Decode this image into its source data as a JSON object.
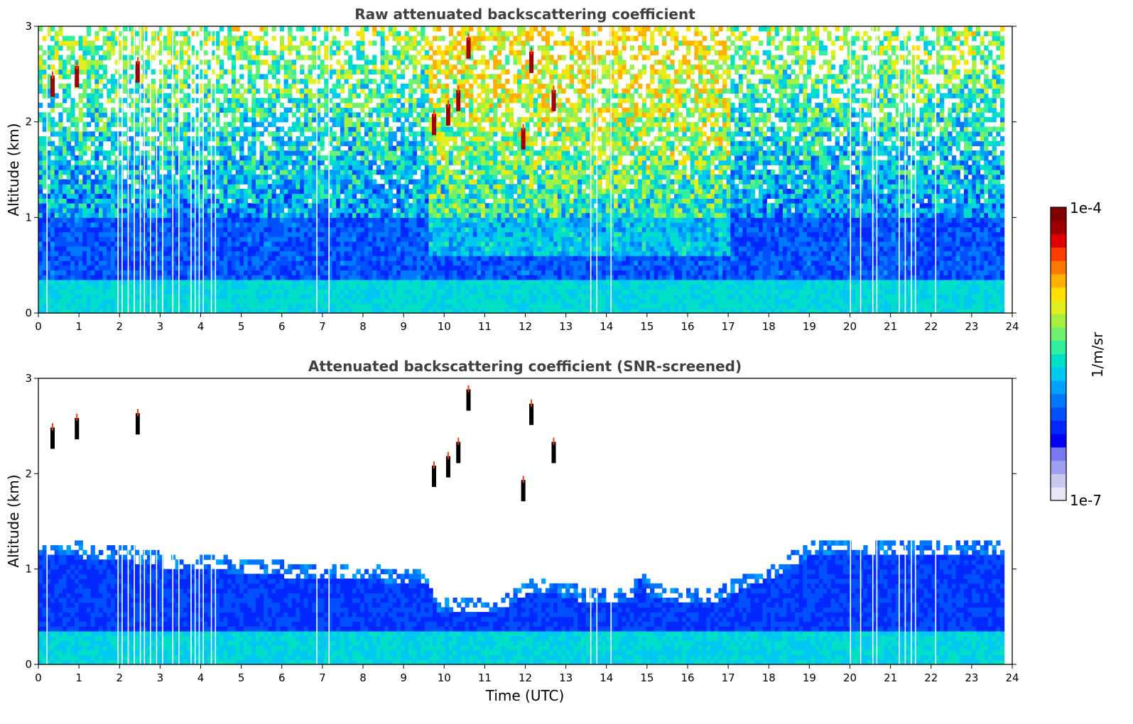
{
  "chart_data": [
    {
      "type": "heatmap",
      "title": "Raw attenuated backscattering coefficient",
      "xlabel": "",
      "ylabel": "Altitude (km)",
      "xlim": [
        0,
        24
      ],
      "ylim": [
        0,
        3
      ],
      "xticks": [
        "0",
        "1",
        "2",
        "3",
        "4",
        "5",
        "6",
        "7",
        "8",
        "9",
        "10",
        "11",
        "12",
        "13",
        "14",
        "15",
        "16",
        "17",
        "18",
        "19",
        "20",
        "21",
        "22",
        "23",
        "24"
      ],
      "yticks": [
        "0",
        "1",
        "2",
        "3"
      ],
      "data_end_hour": 23.8,
      "description_levels": {
        "surface_layer_top_km": 0.35,
        "dense_blue_top_km": 1.0,
        "cloud_patches": [
          {
            "t": 0.35,
            "z": 2.35
          },
          {
            "t": 0.95,
            "z": 2.45
          },
          {
            "t": 2.45,
            "z": 2.5
          },
          {
            "t": 9.75,
            "z": 1.95
          },
          {
            "t": 10.1,
            "z": 2.05
          },
          {
            "t": 10.35,
            "z": 2.2
          },
          {
            "t": 10.6,
            "z": 2.75
          },
          {
            "t": 11.95,
            "z": 1.8
          },
          {
            "t": 12.15,
            "z": 2.6
          },
          {
            "t": 12.7,
            "z": 2.2
          }
        ]
      },
      "gaps_hours": [
        0.2,
        1.95,
        2.05,
        2.2,
        2.35,
        2.5,
        2.6,
        2.75,
        2.9,
        3.05,
        3.3,
        3.45,
        3.75,
        3.85,
        3.95,
        4.05,
        4.25,
        4.35,
        6.85,
        7.15,
        13.6,
        13.75,
        14.1,
        20.0,
        20.25,
        20.55,
        20.65,
        21.2,
        21.35,
        21.5,
        21.6,
        22.1
      ]
    },
    {
      "type": "heatmap",
      "title": "Attenuated backscattering coefficient (SNR-screened)",
      "xlabel": "Time (UTC)",
      "ylabel": "Altitude (km)",
      "xlim": [
        0,
        24
      ],
      "ylim": [
        0,
        3
      ],
      "xticks": [
        "0",
        "1",
        "2",
        "3",
        "4",
        "5",
        "6",
        "7",
        "8",
        "9",
        "10",
        "11",
        "12",
        "13",
        "14",
        "15",
        "16",
        "17",
        "18",
        "19",
        "20",
        "21",
        "22",
        "23",
        "24"
      ],
      "yticks": [
        "0",
        "1",
        "2",
        "3"
      ],
      "data_end_hour": 23.8,
      "boundary_layer_top_km": [
        [
          0,
          1.12
        ],
        [
          1,
          1.1
        ],
        [
          2,
          1.08
        ],
        [
          3,
          1.0
        ],
        [
          4,
          0.98
        ],
        [
          5,
          0.93
        ],
        [
          6,
          0.9
        ],
        [
          7,
          0.88
        ],
        [
          8,
          0.86
        ],
        [
          9,
          0.84
        ],
        [
          9.6,
          0.8
        ],
        [
          9.75,
          0.55
        ],
        [
          10,
          0.55
        ],
        [
          10.5,
          0.55
        ],
        [
          11,
          0.52
        ],
        [
          11.5,
          0.55
        ],
        [
          12,
          0.72
        ],
        [
          12.5,
          0.72
        ],
        [
          13,
          0.68
        ],
        [
          13.5,
          0.62
        ],
        [
          14,
          0.6
        ],
        [
          14.5,
          0.62
        ],
        [
          14.8,
          0.9
        ],
        [
          15,
          0.68
        ],
        [
          15.5,
          0.63
        ],
        [
          16,
          0.62
        ],
        [
          16.5,
          0.6
        ],
        [
          17,
          0.7
        ],
        [
          17.5,
          0.8
        ],
        [
          18,
          0.88
        ],
        [
          18.5,
          1.0
        ],
        [
          19,
          1.12
        ],
        [
          20,
          1.15
        ],
        [
          21,
          1.14
        ],
        [
          22,
          1.13
        ],
        [
          23,
          1.12
        ],
        [
          23.8,
          1.12
        ]
      ],
      "gaps_hours": [
        0.2,
        1.95,
        2.05,
        2.2,
        2.35,
        2.5,
        2.6,
        2.75,
        2.9,
        3.05,
        3.3,
        3.45,
        3.75,
        3.85,
        3.95,
        4.05,
        4.25,
        4.35,
        6.85,
        7.15,
        13.6,
        13.75,
        14.1,
        20.0,
        20.25,
        20.55,
        20.65,
        21.2,
        21.35,
        21.5,
        21.6,
        22.1
      ]
    }
  ],
  "colorbar": {
    "max_label": "1e-4",
    "min_label": "1e-7",
    "unit_label": "1/m/sr",
    "colors": [
      "#e6e6f5",
      "#c8c8f0",
      "#a0a0f0",
      "#7878f0",
      "#0000ff",
      "#0028ff",
      "#0050ff",
      "#0078ff",
      "#00a0ff",
      "#00c8f0",
      "#00e0c8",
      "#30f0a0",
      "#70f070",
      "#a8f040",
      "#e0f020",
      "#ffe000",
      "#ffb000",
      "#ff7800",
      "#ff3c00",
      "#e00000",
      "#a00000",
      "#800000"
    ]
  }
}
